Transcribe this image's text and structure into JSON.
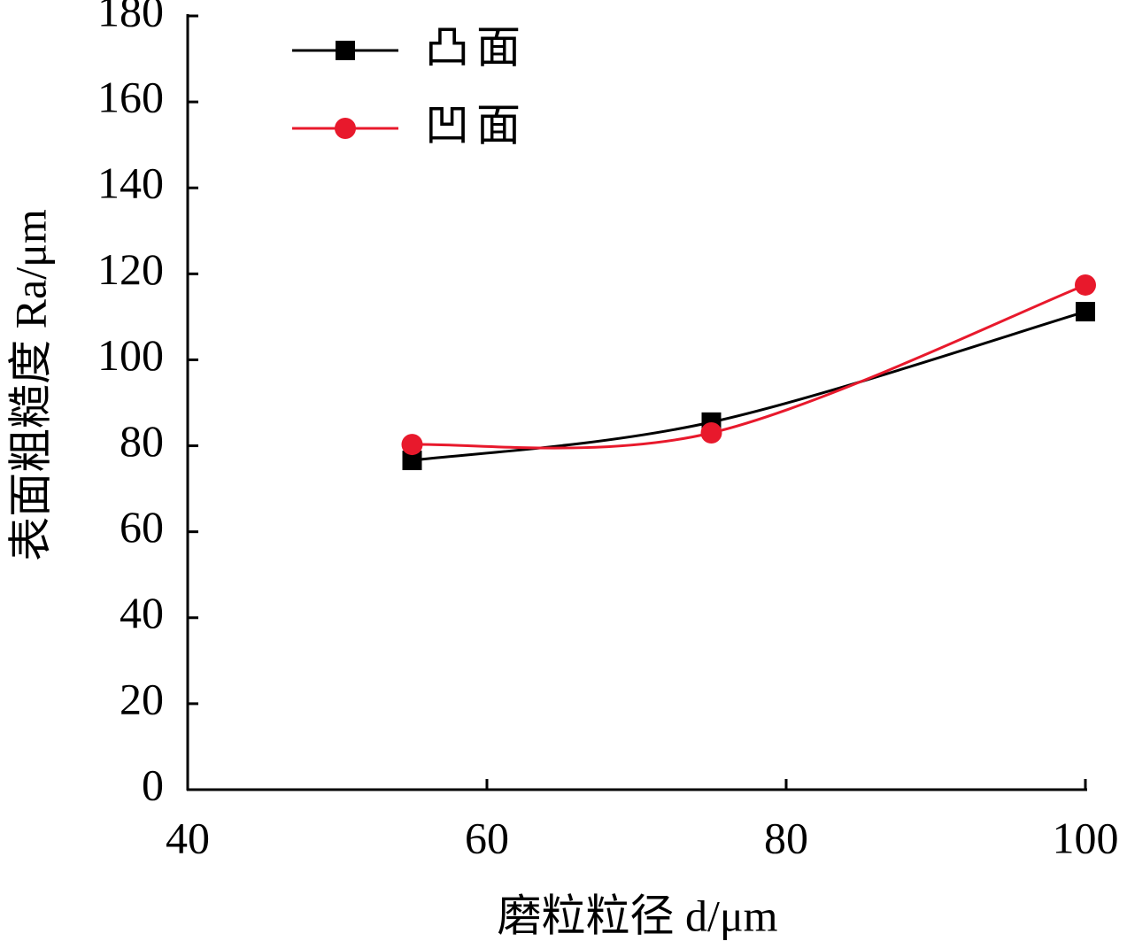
{
  "chart_data": {
    "type": "line",
    "x_label": "磨粒粒径 d/μm",
    "y_label": "表面粗糙度 Ra/μm",
    "x": [
      55,
      75,
      100
    ],
    "series": [
      {
        "name": "凸面",
        "color": "#000000",
        "marker": "square",
        "values": [
          76.6,
          85.5,
          111.2
        ]
      },
      {
        "name": "凹面",
        "color": "#e8192c",
        "marker": "circle",
        "values": [
          80.3,
          83.0,
          117.4
        ]
      }
    ],
    "xlim": [
      40,
      100
    ],
    "xticks": [
      40,
      60,
      80,
      100
    ],
    "ylim": [
      0,
      180
    ],
    "yticks": [
      0,
      20,
      40,
      60,
      80,
      100,
      120,
      140,
      160,
      180
    ],
    "legend": "upper-left"
  }
}
